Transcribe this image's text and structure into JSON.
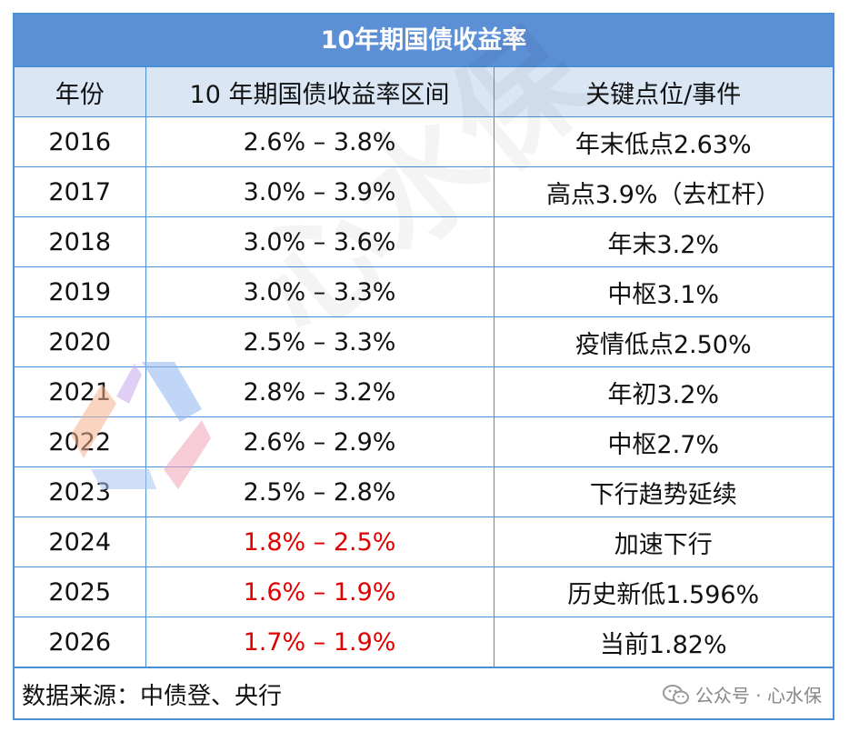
{
  "title": "10年期国债收益率",
  "columns": [
    "年份",
    "10 年期国债收益率区间",
    "关键点位/事件"
  ],
  "rows": [
    {
      "year": "2016",
      "range": "2.6% – 3.8%",
      "event": "年末低点2.63%",
      "highlight": false
    },
    {
      "year": "2017",
      "range": "3.0% – 3.9%",
      "event": "高点3.9%（去杠杆）",
      "highlight": false
    },
    {
      "year": "2018",
      "range": "3.0% – 3.6%",
      "event": "年末3.2%",
      "highlight": false
    },
    {
      "year": "2019",
      "range": "3.0% – 3.3%",
      "event": "中枢3.1%",
      "highlight": false
    },
    {
      "year": "2020",
      "range": "2.5% – 3.3%",
      "event": "疫情低点2.50%",
      "highlight": false
    },
    {
      "year": "2021",
      "range": "2.8% – 3.2%",
      "event": "年初3.2%",
      "highlight": false
    },
    {
      "year": "2022",
      "range": "2.6% – 2.9%",
      "event": "中枢2.7%",
      "highlight": false
    },
    {
      "year": "2023",
      "range": "2.5% – 2.8%",
      "event": "下行趋势延续",
      "highlight": false
    },
    {
      "year": "2024",
      "range": "1.8% – 2.5%",
      "event": "加速下行",
      "highlight": true
    },
    {
      "year": "2025",
      "range": "1.6% – 1.9%",
      "event": "历史新低1.596%",
      "highlight": true
    },
    {
      "year": "2026",
      "range": "1.7% – 1.9%",
      "event": "当前1.82%",
      "highlight": true
    }
  ],
  "footer": {
    "source": "数据来源：中债登、央行",
    "account": "公众号 · 心水保"
  },
  "watermark": "心水保",
  "colors": {
    "header_bg": "#5b8fd6",
    "column_header_bg": "#dbe6f5",
    "border": "#4a90d9",
    "highlight_text": "#e00000"
  },
  "icons": {
    "logo": "watermark-logo-icon",
    "wechat": "wechat-icon"
  }
}
